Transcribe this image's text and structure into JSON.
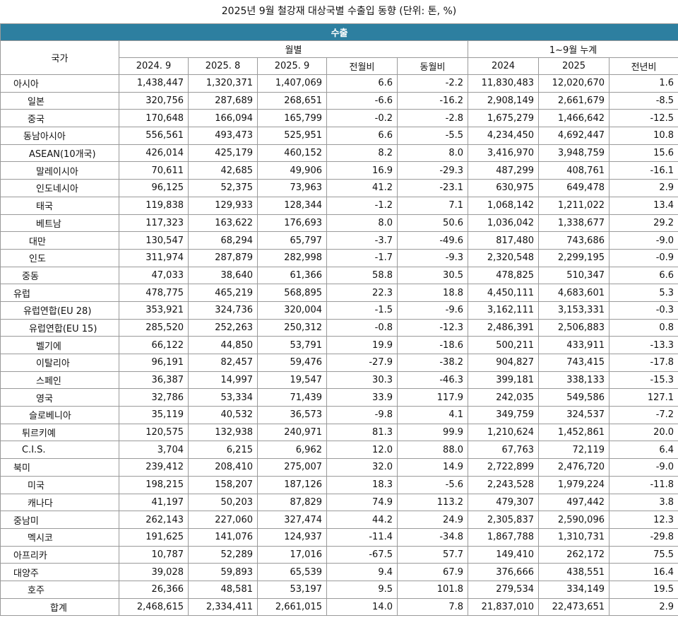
{
  "title": "2025년 9월 철강재 대상국별 수출입 동향 (단위: 톤, %)",
  "table": {
    "section": "수출",
    "country_header": "국가",
    "group_headers": [
      "월별",
      "1~9월 누계"
    ],
    "column_headers": [
      "2024. 9",
      "2025. 8",
      "2025. 9",
      "전월비",
      "동월비",
      "2024",
      "2025",
      "전년비"
    ],
    "rows": [
      [
        "아시아",
        "1,438,447",
        "1,320,371",
        "1,407,069",
        "6.6",
        "-2.2",
        "11,830,483",
        "12,020,670",
        "1.6"
      ],
      [
        "일본",
        "320,756",
        "287,689",
        "268,651",
        "-6.6",
        "-16.2",
        "2,908,149",
        "2,661,679",
        "-8.5"
      ],
      [
        "중국",
        "170,648",
        "166,094",
        "165,799",
        "-0.2",
        "-2.8",
        "1,675,279",
        "1,466,642",
        "-12.5"
      ],
      [
        "동남아시아",
        "556,561",
        "493,473",
        "525,951",
        "6.6",
        "-5.5",
        "4,234,450",
        "4,692,447",
        "10.8"
      ],
      [
        "ASEAN(10개국)",
        "426,014",
        "425,179",
        "460,152",
        "8.2",
        "8.0",
        "3,416,970",
        "3,948,759",
        "15.6"
      ],
      [
        "말레이시아",
        "70,611",
        "42,685",
        "49,906",
        "16.9",
        "-29.3",
        "487,299",
        "408,761",
        "-16.1"
      ],
      [
        "인도네시아",
        "96,125",
        "52,375",
        "73,963",
        "41.2",
        "-23.1",
        "630,975",
        "649,478",
        "2.9"
      ],
      [
        "태국",
        "119,838",
        "129,933",
        "128,344",
        "-1.2",
        "7.1",
        "1,068,142",
        "1,211,022",
        "13.4"
      ],
      [
        "베트남",
        "117,323",
        "163,622",
        "176,693",
        "8.0",
        "50.6",
        "1,036,042",
        "1,338,677",
        "29.2"
      ],
      [
        "대만",
        "130,547",
        "68,294",
        "65,797",
        "-3.7",
        "-49.6",
        "817,480",
        "743,686",
        "-9.0"
      ],
      [
        "인도",
        "311,974",
        "287,879",
        "282,998",
        "-1.7",
        "-9.3",
        "2,320,548",
        "2,299,195",
        "-0.9"
      ],
      [
        "중동",
        "47,033",
        "38,640",
        "61,366",
        "58.8",
        "30.5",
        "478,825",
        "510,347",
        "6.6"
      ],
      [
        "유럽",
        "478,775",
        "465,219",
        "568,895",
        "22.3",
        "18.8",
        "4,450,111",
        "4,683,601",
        "5.3"
      ],
      [
        "유럽연합(EU 28)",
        "353,921",
        "324,736",
        "320,004",
        "-1.5",
        "-9.6",
        "3,162,111",
        "3,153,331",
        "-0.3"
      ],
      [
        "유럽연합(EU 15)",
        "285,520",
        "252,263",
        "250,312",
        "-0.8",
        "-12.3",
        "2,486,391",
        "2,506,883",
        "0.8"
      ],
      [
        "벨기에",
        "66,122",
        "44,850",
        "53,791",
        "19.9",
        "-18.6",
        "500,211",
        "433,911",
        "-13.3"
      ],
      [
        "이탈리아",
        "96,191",
        "82,457",
        "59,476",
        "-27.9",
        "-38.2",
        "904,827",
        "743,415",
        "-17.8"
      ],
      [
        "스페인",
        "36,387",
        "14,997",
        "19,547",
        "30.3",
        "-46.3",
        "399,181",
        "338,133",
        "-15.3"
      ],
      [
        "영국",
        "32,786",
        "53,334",
        "71,439",
        "33.9",
        "117.9",
        "242,035",
        "549,586",
        "127.1"
      ],
      [
        "슬로베니아",
        "35,119",
        "40,532",
        "36,573",
        "-9.8",
        "4.1",
        "349,759",
        "324,537",
        "-7.2"
      ],
      [
        "튀르키예",
        "120,575",
        "132,938",
        "240,971",
        "81.3",
        "99.9",
        "1,210,624",
        "1,452,861",
        "20.0"
      ],
      [
        "C.I.S.",
        "3,704",
        "6,215",
        "6,962",
        "12.0",
        "88.0",
        "67,763",
        "72,119",
        "6.4"
      ],
      [
        "북미",
        "239,412",
        "208,410",
        "275,007",
        "32.0",
        "14.9",
        "2,722,899",
        "2,476,720",
        "-9.0"
      ],
      [
        "미국",
        "198,215",
        "158,207",
        "187,126",
        "18.3",
        "-5.6",
        "2,243,528",
        "1,979,224",
        "-11.8"
      ],
      [
        "캐나다",
        "41,197",
        "50,203",
        "87,829",
        "74.9",
        "113.2",
        "479,307",
        "497,442",
        "3.8"
      ],
      [
        "중남미",
        "262,143",
        "227,060",
        "327,474",
        "44.2",
        "24.9",
        "2,305,837",
        "2,590,096",
        "12.3"
      ],
      [
        "멕시코",
        "191,625",
        "141,076",
        "124,937",
        "-11.4",
        "-34.8",
        "1,867,788",
        "1,310,731",
        "-29.8"
      ],
      [
        "아프리카",
        "10,787",
        "52,289",
        "17,016",
        "-67.5",
        "57.7",
        "149,410",
        "262,172",
        "75.5"
      ],
      [
        "대양주",
        "39,028",
        "59,893",
        "65,539",
        "9.4",
        "67.9",
        "376,666",
        "438,551",
        "16.4"
      ],
      [
        "호주",
        "26,366",
        "48,581",
        "53,197",
        "9.5",
        "101.8",
        "279,534",
        "334,149",
        "19.5"
      ],
      [
        "합계",
        "2,468,615",
        "2,334,411",
        "2,661,015",
        "14.0",
        "7.8",
        "21,837,010",
        "22,473,651",
        "2.9"
      ]
    ]
  }
}
